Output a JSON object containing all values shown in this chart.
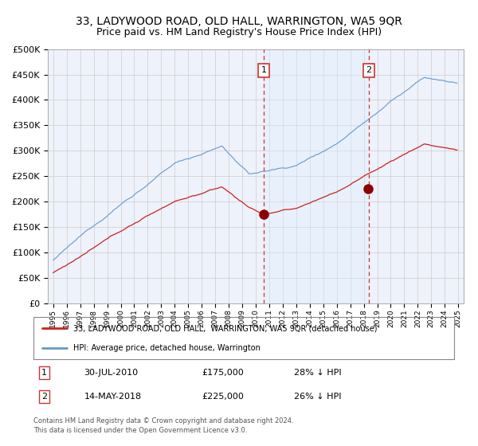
{
  "title": "33, LADYWOOD ROAD, OLD HALL, WARRINGTON, WA5 9QR",
  "subtitle": "Price paid vs. HM Land Registry's House Price Index (HPI)",
  "title_fontsize": 10,
  "subtitle_fontsize": 9,
  "legend_line1": "33, LADYWOOD ROAD, OLD HALL,  WARRINGTON, WA5 9QR (detached house)",
  "legend_line2": "HPI: Average price, detached house, Warrington",
  "sale1_date": "30-JUL-2010",
  "sale1_price": "£175,000",
  "sale1_note": "28% ↓ HPI",
  "sale2_date": "14-MAY-2018",
  "sale2_price": "£225,000",
  "sale2_note": "26% ↓ HPI",
  "footnote": "Contains HM Land Registry data © Crown copyright and database right 2024.\nThis data is licensed under the Open Government Licence v3.0.",
  "hpi_color": "#6699cc",
  "price_color": "#cc2222",
  "marker_color": "#8b0000",
  "vline_color": "#cc3333",
  "shade_color": "#ddeeff",
  "grid_color": "#cccccc",
  "background_color": "#eef2fa",
  "ylim_max": 500000,
  "sale1_year": 2010.58,
  "sale2_year": 2018.37,
  "sale1_price_val": 175000,
  "sale2_price_val": 225000
}
